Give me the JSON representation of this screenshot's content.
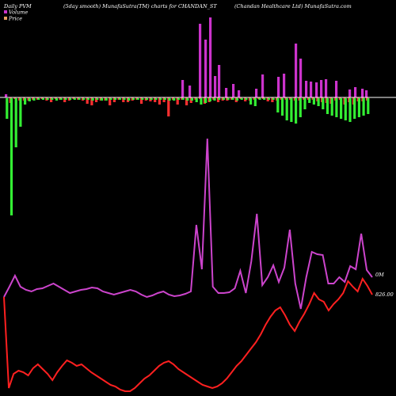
{
  "header": {
    "left": "Daily PVM",
    "center": "(5day smooth) MunafaSutra(TM) charts for CHANDAN_ST",
    "right": "(Chandan Healthcare Ltd) MunafaSutra.com"
  },
  "legend": [
    {
      "label": "Volume",
      "color": "#cc33cc"
    },
    {
      "label": "Price",
      "color": "#e8a060"
    }
  ],
  "chart_data": {
    "type": "line",
    "axis_labels": {
      "volume_level": "0M",
      "price_level": "826.00"
    },
    "colors": {
      "bar_up": "#cc33cc",
      "bar_down": "#ff3030",
      "bar_vol_down": "#33ee33",
      "volume_line": "#cc44cc",
      "price_line": "#ff2020",
      "zero_line": "#ffffff"
    },
    "price_bars": [
      4,
      -7,
      -2,
      -4,
      -4,
      -4,
      -3,
      -3,
      -2,
      -4,
      -6,
      -2,
      -3,
      -6,
      -4,
      -2,
      -3,
      -4,
      -8,
      -10,
      -6,
      -4,
      -4,
      -10,
      -6,
      -3,
      -6,
      -6,
      -4,
      -3,
      -8,
      -4,
      -5,
      -6,
      -9,
      -6,
      -24,
      -3,
      -9,
      -3,
      -10,
      -7,
      -3,
      -2,
      -8,
      -6,
      -3,
      -6,
      -4,
      -4,
      -3,
      -6,
      -2,
      -5,
      -4,
      -3,
      -2,
      -2,
      -5,
      -6,
      -4,
      -3,
      -3,
      -3,
      -4,
      -4,
      -3,
      -3,
      -3,
      -5,
      -6,
      -7,
      -8,
      -4,
      -3,
      -9,
      -6,
      -9,
      -5,
      -5,
      -4
    ],
    "volume_bars": [
      -26,
      -148,
      -62,
      -36,
      -8,
      -4,
      -3,
      -2,
      -2,
      -2,
      -2,
      -3,
      -2,
      -2,
      -2,
      -2,
      -2,
      -2,
      -2,
      -3,
      -2,
      -3,
      -3,
      -2,
      -2,
      -2,
      -2,
      -3,
      -2,
      -2,
      -2,
      -2,
      -2,
      -2,
      -2,
      -2,
      -3,
      -3,
      -2,
      -2,
      -3,
      -3,
      -5,
      -8,
      -6,
      -4,
      -3,
      -2,
      -2,
      -2,
      -2,
      -3,
      -2,
      -2,
      -8,
      -10,
      -2,
      -2,
      -2,
      -2,
      -18,
      -22,
      -28,
      -30,
      -32,
      -24,
      -14,
      -6,
      -8,
      -10,
      -14,
      -20,
      -22,
      -24,
      -26,
      -28,
      -30,
      -26,
      -24,
      -22,
      -20
    ],
    "volume_line": [
      375,
      362,
      348,
      362,
      366,
      368,
      365,
      364,
      361,
      358,
      362,
      366,
      370,
      368,
      366,
      365,
      363,
      364,
      368,
      370,
      372,
      370,
      368,
      366,
      368,
      372,
      375,
      373,
      370,
      368,
      372,
      374,
      373,
      371,
      368,
      284,
      340,
      175,
      362,
      370,
      370,
      369,
      364,
      342,
      370,
      330,
      270,
      360,
      350,
      335,
      356,
      338,
      290,
      358,
      390,
      350,
      318,
      321,
      322,
      358,
      358,
      350,
      356,
      336,
      340,
      295,
      341,
      350
    ],
    "price_line": [
      375,
      490,
      472,
      468,
      470,
      474,
      465,
      460,
      466,
      472,
      480,
      470,
      462,
      455,
      458,
      462,
      460,
      465,
      470,
      474,
      478,
      482,
      486,
      488,
      492,
      494,
      494,
      490,
      484,
      478,
      474,
      468,
      462,
      458,
      456,
      460,
      466,
      470,
      474,
      478,
      482,
      486,
      488,
      490,
      488,
      484,
      478,
      470,
      462,
      456,
      448,
      440,
      432,
      422,
      410,
      400,
      392,
      388,
      398,
      410,
      418,
      406,
      396,
      384,
      370,
      378,
      381,
      392,
      384,
      378,
      370,
      355,
      362,
      368,
      352,
      361,
      372
    ]
  }
}
